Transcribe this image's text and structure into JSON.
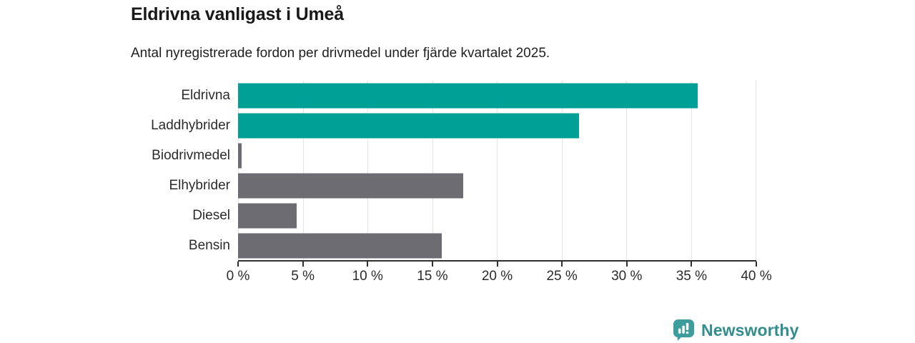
{
  "chart_data": {
    "type": "bar",
    "orientation": "horizontal",
    "title": "Eldrivna vanligast i Umeå",
    "subtitle": "Antal nyregistrerade fordon per drivmedel under fjärde kvartalet 2025.",
    "categories": [
      "Eldrivna",
      "Laddhybrider",
      "Biodrivmedel",
      "Elhybrider",
      "Diesel",
      "Bensin"
    ],
    "bars": [
      {
        "label": "Eldrivna",
        "value": 35.5,
        "color": "#00a096"
      },
      {
        "label": "Laddhybrider",
        "value": 26.3,
        "color": "#00a096"
      },
      {
        "label": "Biodrivmedel",
        "value": 0.3,
        "color": "#6c6c72"
      },
      {
        "label": "Elhybrider",
        "value": 17.4,
        "color": "#6c6c72"
      },
      {
        "label": "Diesel",
        "value": 4.5,
        "color": "#6c6c72"
      },
      {
        "label": "Bensin",
        "value": 15.7,
        "color": "#6c6c72"
      }
    ],
    "xlabel": "",
    "ylabel": "",
    "xlim": [
      0,
      40
    ],
    "x_ticks": [
      {
        "value": 0,
        "label": "0 %"
      },
      {
        "value": 5,
        "label": "5 %"
      },
      {
        "value": 10,
        "label": "10 %"
      },
      {
        "value": 15,
        "label": "15 %"
      },
      {
        "value": 20,
        "label": "20 %"
      },
      {
        "value": 25,
        "label": "25 %"
      },
      {
        "value": 30,
        "label": "30 %"
      },
      {
        "value": 35,
        "label": "35 %"
      },
      {
        "value": 40,
        "label": "40 %"
      }
    ],
    "grid": "vertical",
    "legend": "none",
    "colors": {
      "accent_teal": "#00a096",
      "neutral_gray": "#6c6c72",
      "gridline": "#e4e4e6",
      "axis": "#303030",
      "text": "#2b2b2b"
    }
  },
  "branding": {
    "logo_text": "Newsworthy",
    "logo_color": "#338d8d",
    "logo_icon": "bar-chart-speech-bubble"
  }
}
